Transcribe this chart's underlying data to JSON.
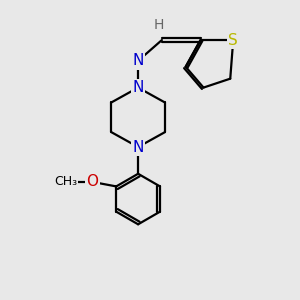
{
  "bg_color": "#e8e8e8",
  "atom_colors": {
    "C": "#000000",
    "N": "#0000cc",
    "O": "#cc0000",
    "S": "#b8b800",
    "H": "#666666"
  },
  "bond_color": "#000000",
  "bond_width": 1.6,
  "xlim": [
    0,
    10
  ],
  "ylim": [
    0,
    10
  ]
}
